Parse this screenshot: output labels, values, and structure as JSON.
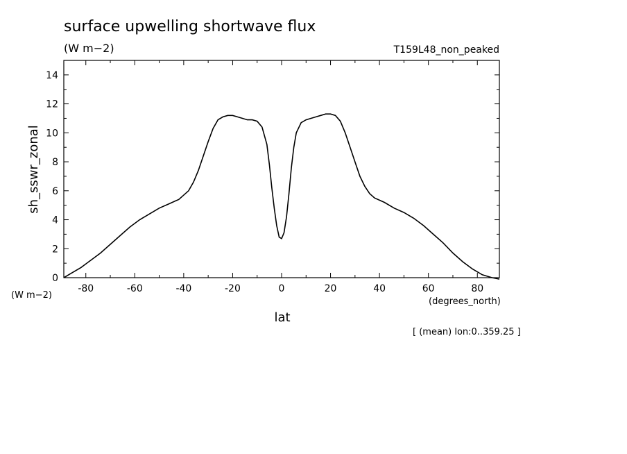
{
  "chart_data": {
    "type": "line",
    "title": "surface upwelling shortwave flux",
    "units": "(W m−2)",
    "run_label": "T159L48_non_peaked",
    "xlabel": "lat",
    "xunits": "(degrees_north)",
    "ylabel": "sh_sswr_zonal",
    "yunits": "(W m−2)",
    "footnote": "[ (mean) lon:0..359.25 ]",
    "xlim": [
      -89,
      89
    ],
    "ylim": [
      0,
      15
    ],
    "xticks": [
      -80,
      -60,
      -40,
      -20,
      0,
      20,
      40,
      60,
      80
    ],
    "yticks": [
      0,
      2,
      4,
      6,
      8,
      10,
      12,
      14
    ],
    "line_color": "#000000",
    "series": [
      {
        "x": [
          -89,
          -86,
          -82,
          -78,
          -74,
          -70,
          -66,
          -62,
          -58,
          -54,
          -50,
          -46,
          -42,
          -38,
          -36,
          -34,
          -32,
          -30,
          -28,
          -26,
          -24,
          -22,
          -20,
          -18,
          -16,
          -14,
          -12,
          -10,
          -8,
          -6,
          -5,
          -4,
          -3,
          -2,
          -1,
          0,
          1,
          2,
          3,
          4,
          5,
          6,
          8,
          10,
          12,
          14,
          16,
          18,
          20,
          22,
          24,
          26,
          28,
          30,
          32,
          34,
          36,
          38,
          42,
          46,
          50,
          54,
          58,
          62,
          66,
          70,
          74,
          78,
          82,
          86,
          89
        ],
        "values": [
          0.0,
          0.3,
          0.7,
          1.2,
          1.7,
          2.3,
          2.9,
          3.5,
          4.0,
          4.4,
          4.8,
          5.1,
          5.4,
          6.0,
          6.6,
          7.4,
          8.4,
          9.4,
          10.3,
          10.9,
          11.1,
          11.2,
          11.2,
          11.1,
          11.0,
          10.9,
          10.9,
          10.8,
          10.4,
          9.2,
          7.8,
          6.2,
          4.8,
          3.6,
          2.8,
          2.7,
          3.1,
          4.2,
          5.8,
          7.6,
          9.0,
          10.0,
          10.7,
          10.9,
          11.0,
          11.1,
          11.2,
          11.3,
          11.3,
          11.2,
          10.8,
          10.0,
          9.0,
          8.0,
          7.0,
          6.3,
          5.8,
          5.5,
          5.2,
          4.8,
          4.5,
          4.1,
          3.6,
          3.0,
          2.4,
          1.7,
          1.1,
          0.6,
          0.2,
          0.0,
          -0.1
        ]
      }
    ]
  }
}
